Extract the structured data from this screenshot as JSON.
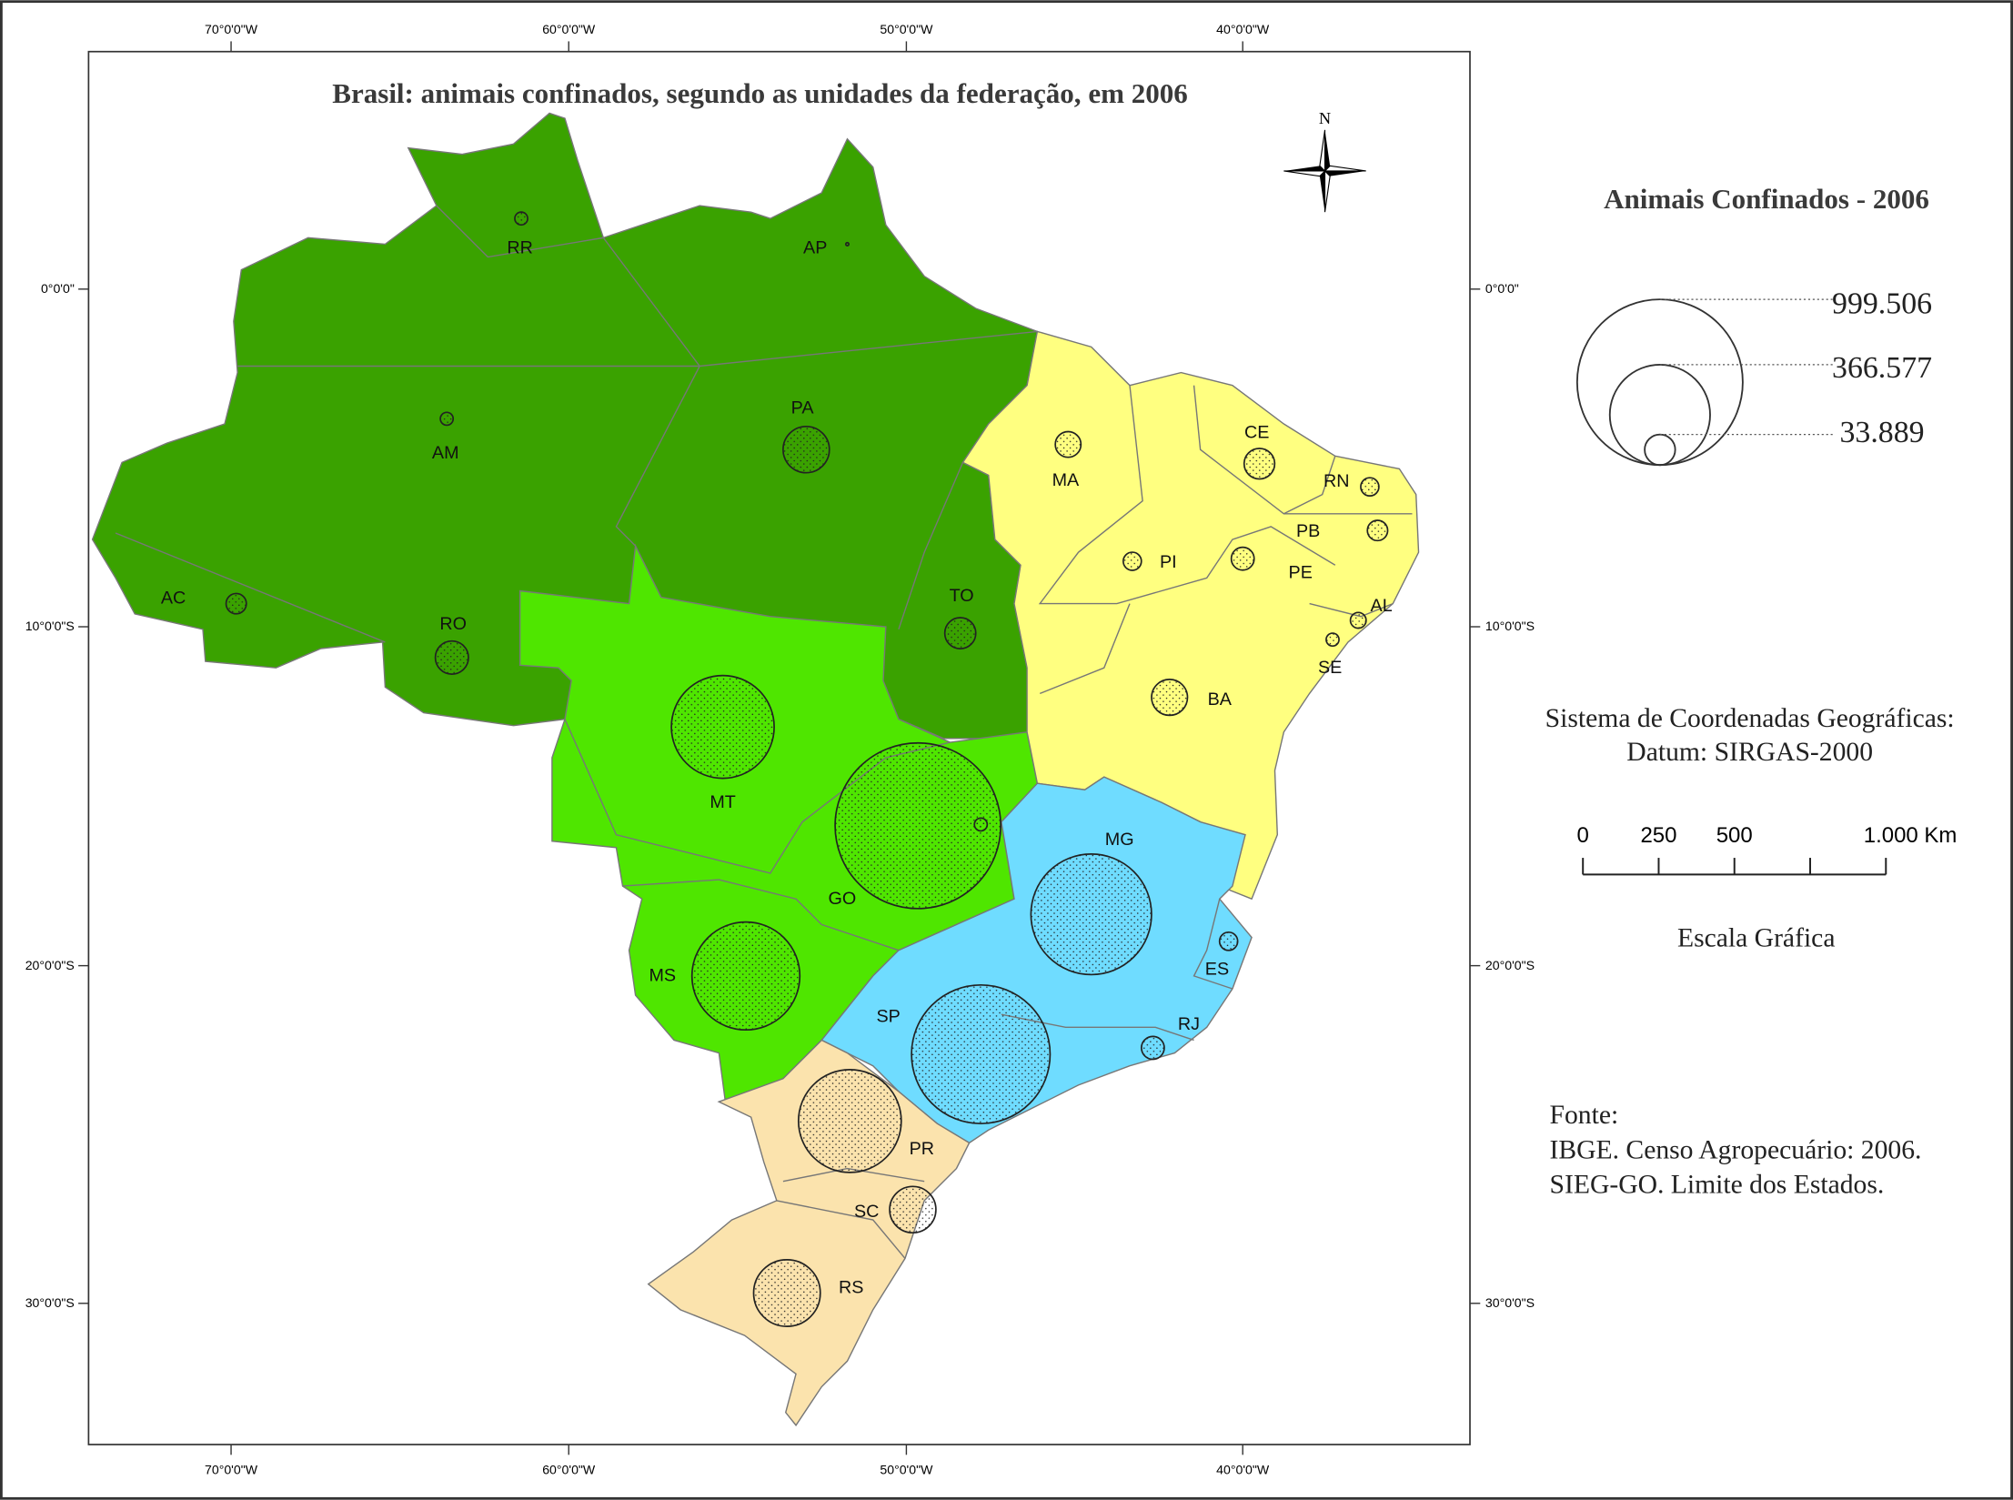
{
  "title": "Brasil: animais confinados, segundo as unidades da federação, em 2006",
  "north_label": "N",
  "graticule": {
    "lon_labels": [
      "70°0'0\"W",
      "60°0'0\"W",
      "50°0'0\"W",
      "40°0'0\"W"
    ],
    "lat_labels": [
      "0°0'0\"",
      "10°0'0\"S",
      "20°0'0\"S",
      "30°0'0\"S"
    ]
  },
  "region_colors": {
    "north": "#3aa200",
    "center_west": "#4fe600",
    "northeast": "#ffff80",
    "southeast": "#6fdcff",
    "south": "#fbe3ad"
  },
  "legend": {
    "title": "Animais Confinados - 2006",
    "values": [
      {
        "value": 999506,
        "label": "999.506"
      },
      {
        "value": 366577,
        "label": "366.577"
      },
      {
        "value": 33889,
        "label": "33.889"
      }
    ]
  },
  "states": [
    {
      "uf": "RR",
      "region": "north",
      "value_est": 6000
    },
    {
      "uf": "AP",
      "region": "north",
      "value_est": 300
    },
    {
      "uf": "AM",
      "region": "north",
      "value_est": 6000
    },
    {
      "uf": "PA",
      "region": "north",
      "value_est": 78000
    },
    {
      "uf": "AC",
      "region": "north",
      "value_est": 15000
    },
    {
      "uf": "RO",
      "region": "north",
      "value_est": 40000
    },
    {
      "uf": "TO",
      "region": "north",
      "value_est": 35000
    },
    {
      "uf": "MA",
      "region": "northeast",
      "value_est": 24000
    },
    {
      "uf": "CE",
      "region": "northeast",
      "value_est": 34000
    },
    {
      "uf": "RN",
      "region": "northeast",
      "value_est": 12000
    },
    {
      "uf": "PB",
      "region": "northeast",
      "value_est": 15000
    },
    {
      "uf": "PI",
      "region": "northeast",
      "value_est": 12000
    },
    {
      "uf": "PE",
      "region": "northeast",
      "value_est": 19000
    },
    {
      "uf": "AL",
      "region": "northeast",
      "value_est": 9000
    },
    {
      "uf": "SE",
      "region": "northeast",
      "value_est": 6000
    },
    {
      "uf": "BA",
      "region": "northeast",
      "value_est": 47000
    },
    {
      "uf": "MT",
      "region": "center_west",
      "value_est": 385000
    },
    {
      "uf": "GO",
      "region": "center_west",
      "value_est": 999506
    },
    {
      "uf": "DF",
      "region": "center_west",
      "value_est": 6000,
      "hide_label": true
    },
    {
      "uf": "MS",
      "region": "center_west",
      "value_est": 424000
    },
    {
      "uf": "MG",
      "region": "southeast",
      "value_est": 530000
    },
    {
      "uf": "ES",
      "region": "southeast",
      "value_est": 12000
    },
    {
      "uf": "RJ",
      "region": "southeast",
      "value_est": 19000
    },
    {
      "uf": "SP",
      "region": "southeast",
      "value_est": 700000
    },
    {
      "uf": "PR",
      "region": "south",
      "value_est": 385000
    },
    {
      "uf": "SC",
      "region": "south",
      "value_est": 78000
    },
    {
      "uf": "RS",
      "region": "south",
      "value_est": 162000
    }
  ],
  "coordinate_system": {
    "line1": "Sistema de Coordenadas Geográficas:",
    "line2": "Datum: SIRGAS-2000"
  },
  "scale_bar": {
    "labels": [
      "0",
      "250",
      "500",
      "1.000 Km"
    ],
    "caption": "Escala Gráfica"
  },
  "source": {
    "heading": "Fonte:",
    "lines": [
      "IBGE. Censo Agropecuário: 2006.",
      "SIEG-GO. Limite dos Estados."
    ]
  }
}
